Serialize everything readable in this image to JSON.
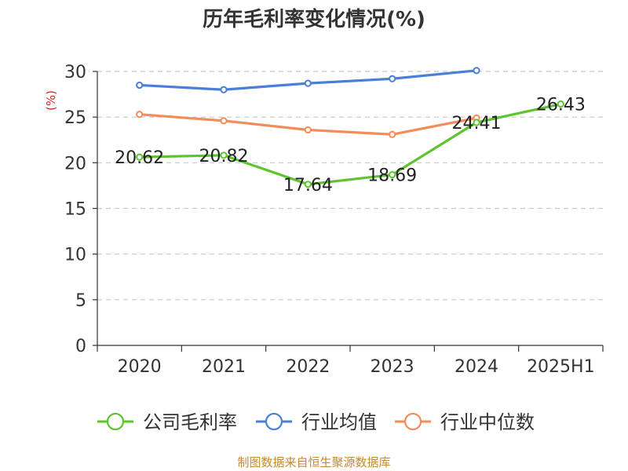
{
  "chart_data": {
    "type": "line",
    "title": "历年毛利率变化情况(%)",
    "ylabel": "(%)",
    "xlabel": "",
    "categories": [
      "2020",
      "2021",
      "2022",
      "2023",
      "2024",
      "2025H1"
    ],
    "ylim": [
      0,
      30
    ],
    "yticks": [
      0,
      5,
      10,
      15,
      20,
      25,
      30
    ],
    "grid": "horizontal dashed",
    "legend_position": "bottom",
    "series": [
      {
        "name": "公司毛利率",
        "color": "#5ec42e",
        "values": [
          20.62,
          20.82,
          17.64,
          18.69,
          24.41,
          26.43
        ],
        "labels": [
          "20.62",
          "20.82",
          "17.64",
          "18.69",
          "24.41",
          "26.43"
        ]
      },
      {
        "name": "行业均值",
        "color": "#4a7fd8",
        "values": [
          28.5,
          28.0,
          28.7,
          29.2,
          30.1,
          null
        ]
      },
      {
        "name": "行业中位数",
        "color": "#f28c5a",
        "values": [
          25.3,
          24.6,
          23.6,
          23.1,
          24.9,
          null
        ]
      }
    ]
  },
  "source_note": "制图数据来自恒生聚源数据库"
}
